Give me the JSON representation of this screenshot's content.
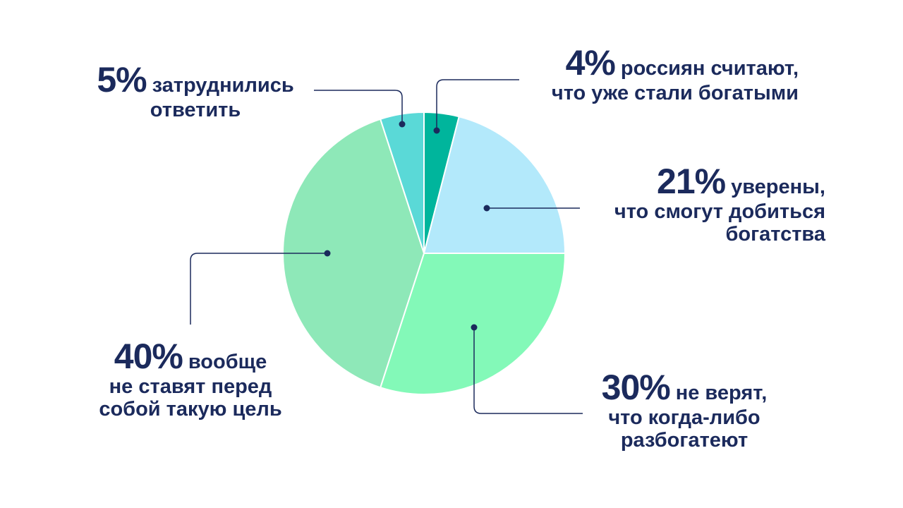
{
  "chart_data": {
    "type": "pie",
    "title": "",
    "slices": [
      {
        "id": "rich",
        "value": 4,
        "label_pct": "4%",
        "label_lines": [
          "россиян считают,",
          "что уже стали богатыми"
        ],
        "color": "#00b59c"
      },
      {
        "id": "confident",
        "value": 21,
        "label_pct": "21%",
        "label_lines": [
          "уверены,",
          "что смогут добиться",
          "богатства"
        ],
        "color": "#b3e9fb"
      },
      {
        "id": "no-belief",
        "value": 30,
        "label_pct": "30%",
        "label_lines": [
          "не верят,",
          "что когда-либо",
          "разбогатеют"
        ],
        "color": "#83f9b8"
      },
      {
        "id": "no-goal",
        "value": 40,
        "label_pct": "40%",
        "label_lines": [
          "вообще",
          "не ставят перед",
          "собой такую цель"
        ],
        "color": "#8ee8b8"
      },
      {
        "id": "undecided",
        "value": 5,
        "label_pct": "5%",
        "label_lines": [
          "затруднились",
          "ответить"
        ],
        "color": "#5ad9d7"
      }
    ],
    "start_angle": "12 o'clock",
    "direction": "clockwise",
    "legend": "none",
    "slice_border_color": "#ffffff",
    "leader_color": "#1b2a5c",
    "text_color": "#1b2a5c"
  }
}
